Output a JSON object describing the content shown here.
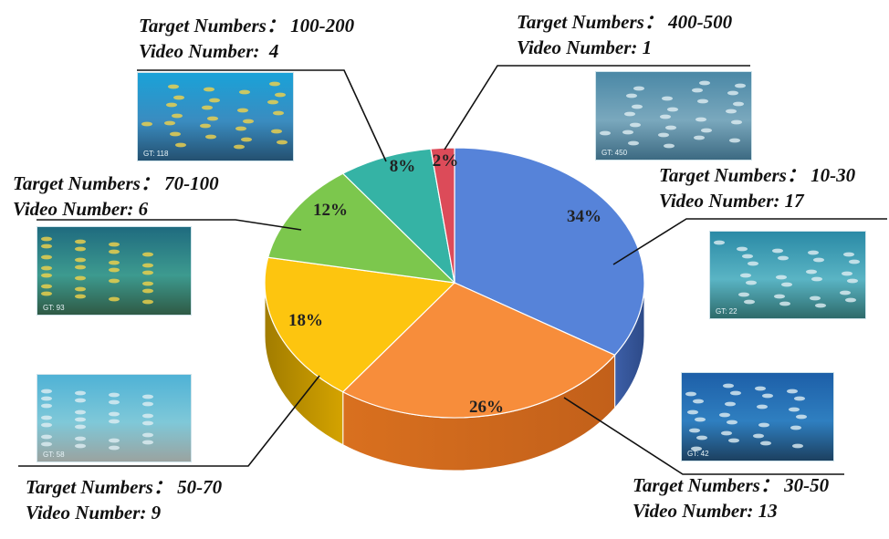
{
  "chart_data": {
    "type": "pie",
    "labels": [
      "34%",
      "26%",
      "18%",
      "12%",
      "8%",
      "2%"
    ],
    "values": [
      34,
      26,
      18,
      12,
      8,
      2
    ],
    "colors": [
      "#5683d9",
      "#f78d3b",
      "#fdc50f",
      "#7cc74d",
      "#35b3a5",
      "#dc4b59"
    ],
    "categories": [
      {
        "target": "Target Numbers： 10-30",
        "video": "Video Number: 17",
        "thumb_gt": "GT: 22"
      },
      {
        "target": "Target Numbers： 30-50",
        "video": "Video Number: 13",
        "thumb_gt": "GT: 42"
      },
      {
        "target": "Target Numbers： 50-70",
        "video": "Video Number: 9",
        "thumb_gt": "GT: 58"
      },
      {
        "target": "Target Numbers： 70-100",
        "video": "Video Number: 6",
        "thumb_gt": "GT: 93"
      },
      {
        "target": "Target Numbers： 100-200",
        "video": "Video Number:  4",
        "thumb_gt": "GT: 118"
      },
      {
        "target": "Target Numbers： 400-500",
        "video": "Video Number: 1",
        "thumb_gt": "GT: 450"
      }
    ]
  }
}
